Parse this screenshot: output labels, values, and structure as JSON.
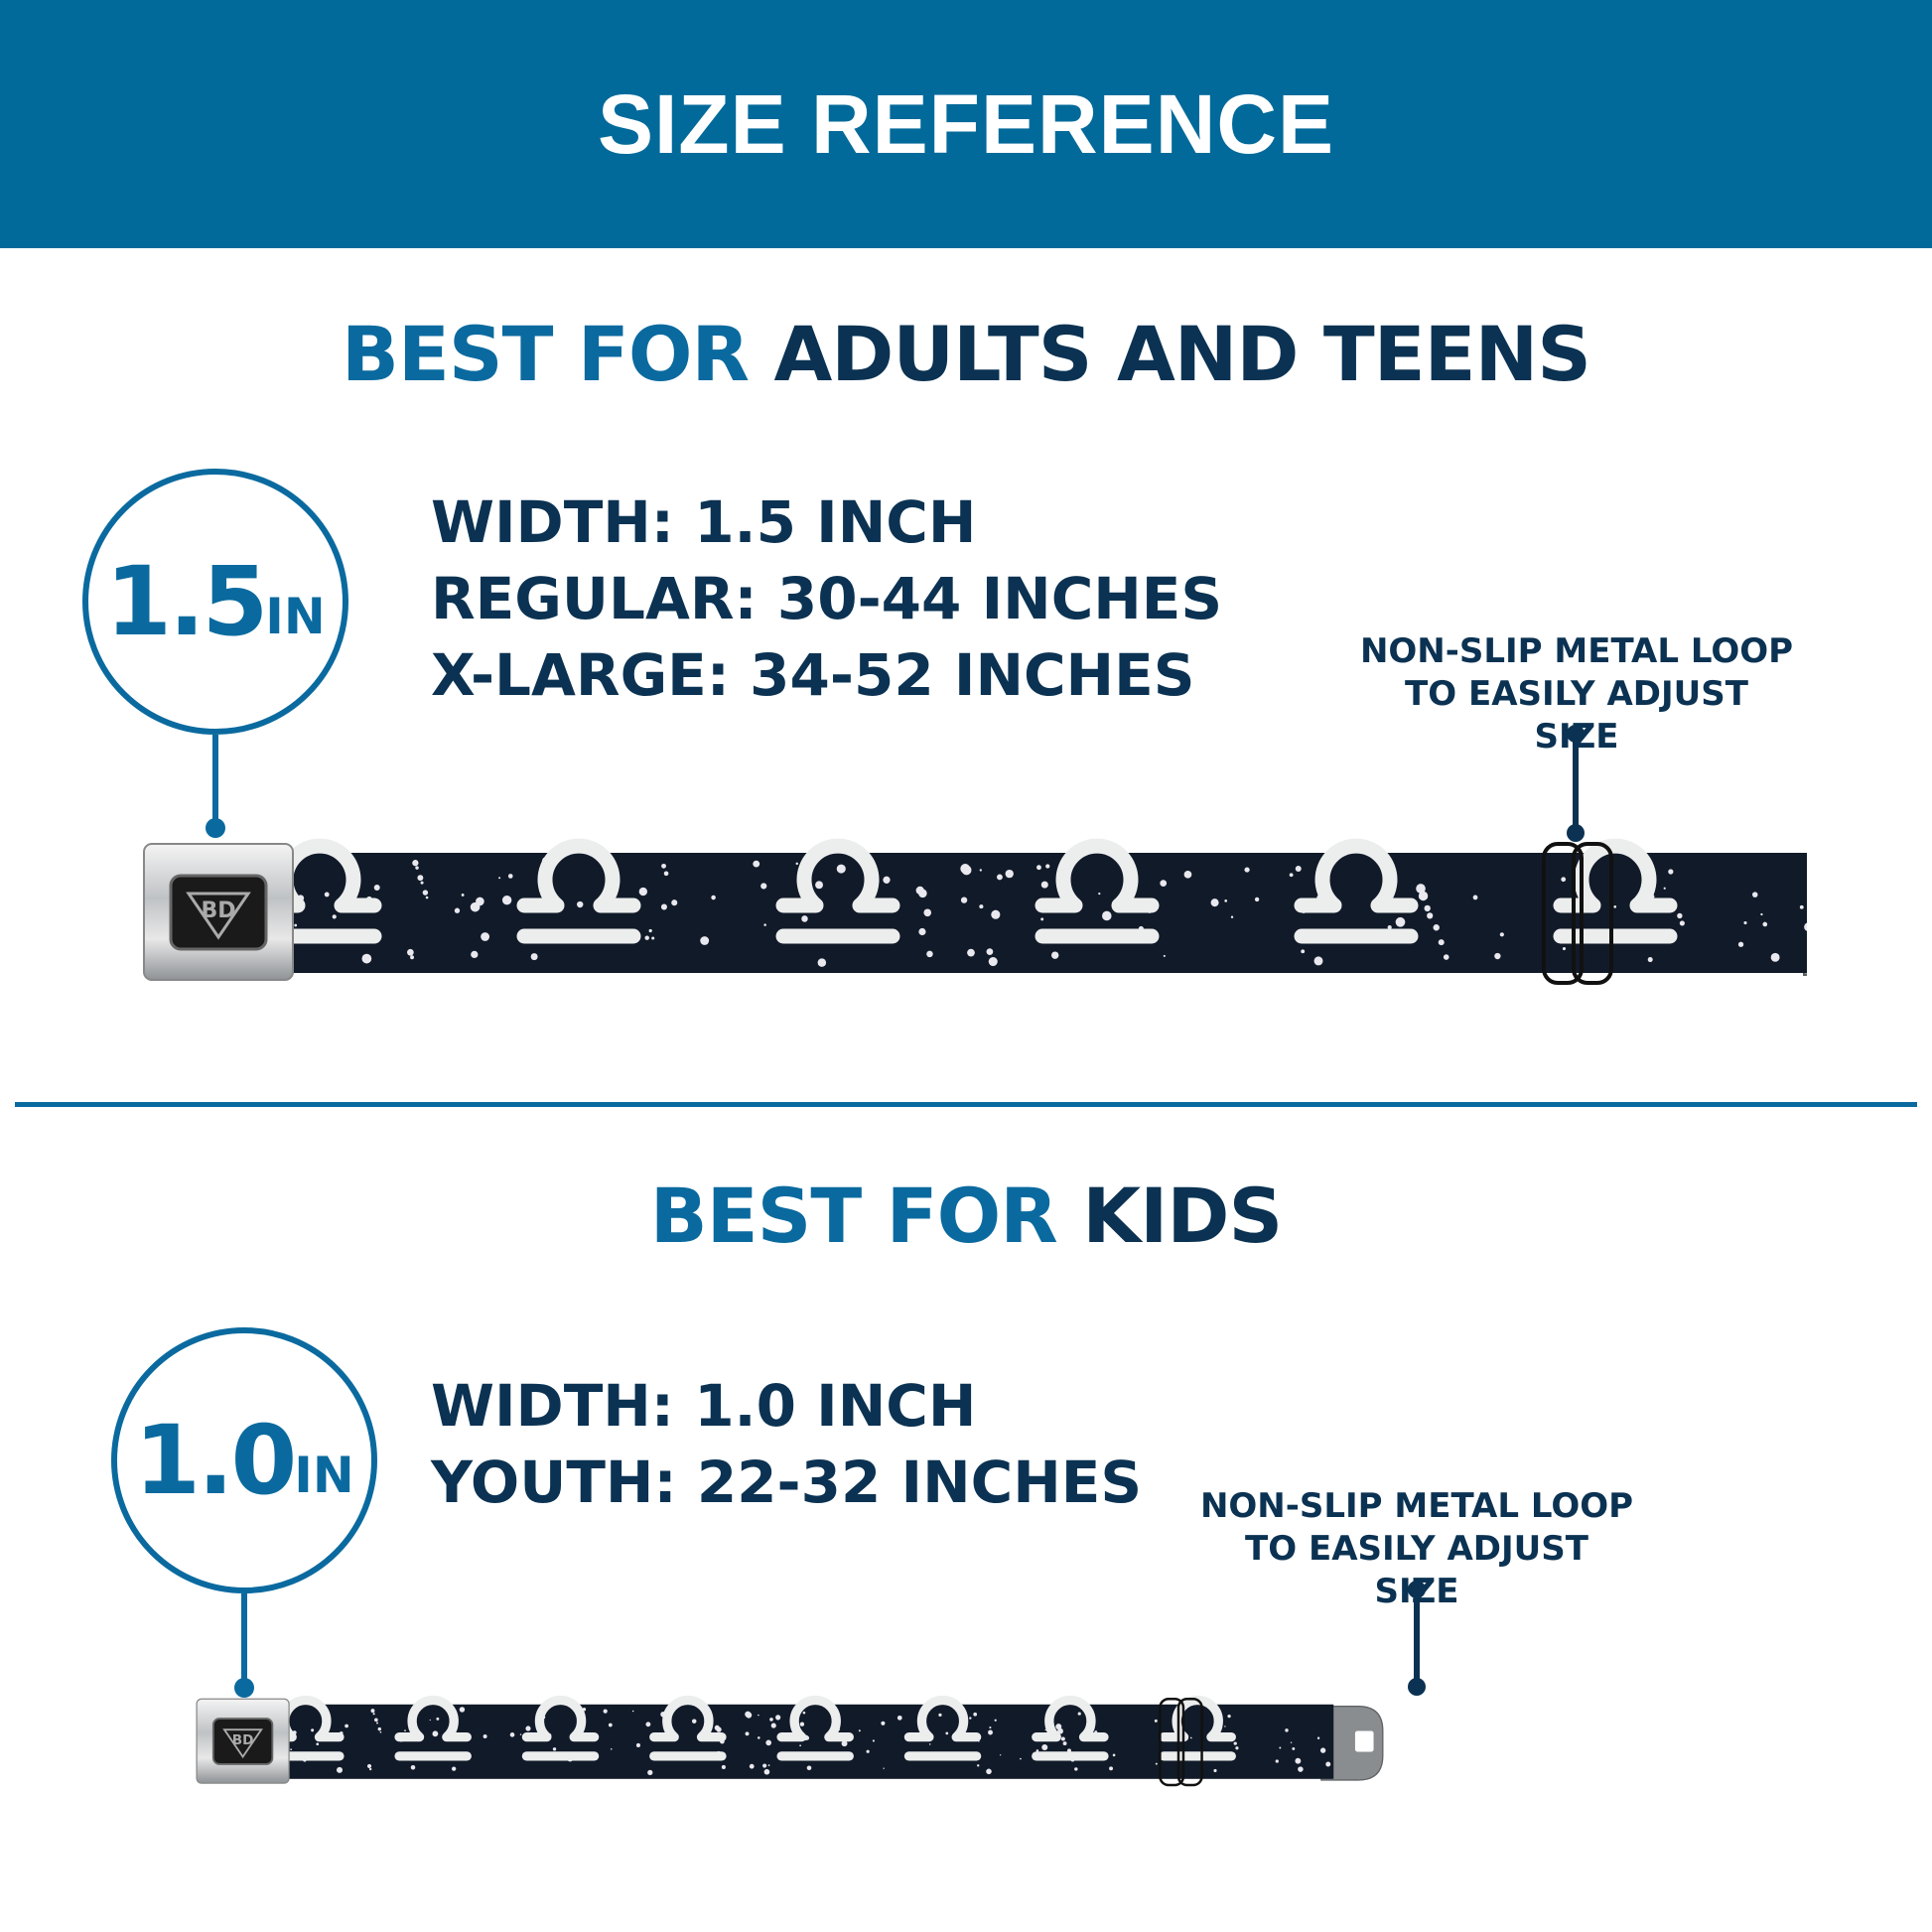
{
  "header": {
    "title": "SIZE REFERENCE"
  },
  "adults": {
    "heading_accent": "BEST FOR",
    "heading_main": "ADULTS AND TEENS",
    "badge_number": "1.5",
    "badge_unit": "IN",
    "specs": [
      "WIDTH: 1.5 INCH",
      "REGULAR: 30-44 INCHES",
      "X-LARGE: 34-52 INCHES"
    ],
    "callout": [
      "NON-SLIP METAL LOOP",
      "TO EASILY ADJUST SIZE"
    ]
  },
  "kids": {
    "heading_accent": "BEST FOR",
    "heading_main": "KIDS",
    "badge_number": "1.0",
    "badge_unit": "IN",
    "specs": [
      "WIDTH: 1.0 INCH",
      "YOUTH: 22-32 INCHES"
    ],
    "callout": [
      "NON-SLIP METAL LOOP",
      "TO EASILY ADJUST SIZE"
    ]
  },
  "colors": {
    "brand_blue": "#026a9a",
    "navy": "#0b3252",
    "strap": "#111a28"
  },
  "belt_logo": "BD"
}
